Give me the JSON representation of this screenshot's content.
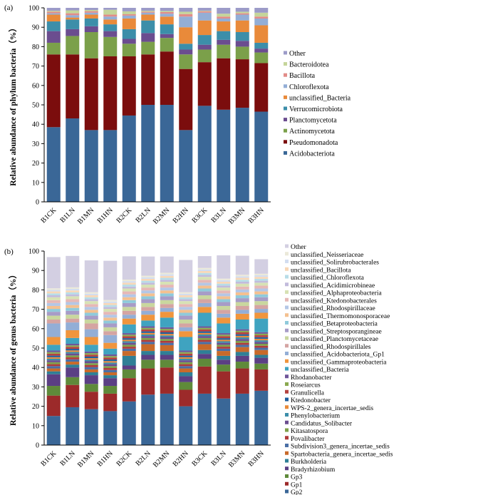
{
  "chart_data": [
    {
      "type": "bar",
      "stacked": true,
      "panel_label": "(a)",
      "ylabel": "Relative abundance of phylum bacteria（%）",
      "ylim": [
        0,
        100
      ],
      "yticks": [
        0,
        10,
        20,
        30,
        40,
        50,
        60,
        70,
        80,
        90,
        100
      ],
      "categories": [
        "B1CK",
        "B1LN",
        "B1MN",
        "B1HN",
        "B2CK",
        "B2LN",
        "B2MN",
        "B2HN",
        "B3CK",
        "B3LN",
        "B3MN",
        "B3HN"
      ],
      "legend_position": "right",
      "series": [
        {
          "name": "Acidobacteriota",
          "color": "#3a6797",
          "values": [
            38.5,
            43,
            37,
            37,
            44.5,
            50,
            50,
            37,
            49.5,
            47.5,
            48.5,
            46.5
          ]
        },
        {
          "name": "Pseudomonadota",
          "color": "#7b0d0d",
          "values": [
            37.5,
            33,
            37,
            38,
            30.5,
            26,
            27.5,
            31.5,
            22.5,
            26.5,
            25,
            25
          ]
        },
        {
          "name": "Actinomycetota",
          "color": "#7ba04a",
          "values": [
            6,
            9.5,
            13.5,
            10,
            6.5,
            6.5,
            7,
            7.5,
            6.5,
            7,
            6.5,
            5.5
          ]
        },
        {
          "name": "Planctomycetota",
          "color": "#6b4d8f",
          "values": [
            6,
            3.5,
            3,
            3,
            2.5,
            4.5,
            2,
            2.5,
            2.5,
            2.5,
            3,
            2
          ]
        },
        {
          "name": "Verrucomicrobiota",
          "color": "#3c8ea9",
          "values": [
            5,
            5,
            4,
            3.5,
            5,
            6.5,
            5,
            3,
            5,
            4.5,
            4.5,
            3
          ]
        },
        {
          "name": "unclassified_Bacteria",
          "color": "#e98a3a",
          "values": [
            3.5,
            1,
            2,
            2.5,
            5.5,
            3,
            4,
            8.5,
            7.5,
            5,
            6,
            9
          ]
        },
        {
          "name": "Chloroflexota",
          "color": "#93aed6",
          "values": [
            0.7,
            1.2,
            1,
            1.5,
            1.5,
            1,
            1.5,
            5.5,
            4,
            1.5,
            3,
            3.5
          ]
        },
        {
          "name": "Bacillota",
          "color": "#e28c88",
          "values": [
            0.8,
            1,
            0.8,
            1,
            0.7,
            0.5,
            0.8,
            1.3,
            0.7,
            1,
            0.7,
            1
          ]
        },
        {
          "name": "Bacteroidotea",
          "color": "#c5d59a",
          "values": [
            0.5,
            1.5,
            0.6,
            2.5,
            1.5,
            0.5,
            0.6,
            1.2,
            0.3,
            1.5,
            0.8,
            2
          ]
        },
        {
          "name": "Other",
          "color": "#9c9bc8",
          "values": [
            1.5,
            1.3,
            1.1,
            1,
            1.8,
            1.5,
            1.6,
            2,
            1.5,
            3,
            2,
            2.5
          ]
        }
      ]
    },
    {
      "type": "bar",
      "stacked": true,
      "panel_label": "(b)",
      "ylabel": "Relative abundance of genus bacteria（%）",
      "ylim": [
        0,
        100
      ],
      "yticks": [
        0,
        10,
        20,
        30,
        40,
        50,
        60,
        70,
        80,
        90,
        100
      ],
      "categories": [
        "B1CK",
        "B1LN",
        "B1MN",
        "B1HN",
        "B2CK",
        "B2LN",
        "B2MN",
        "B2HN",
        "B3CK",
        "B3LN",
        "B3MN",
        "B3HN"
      ],
      "legend_position": "right",
      "series": [
        {
          "name": "Gp2",
          "color": "#3a6797",
          "values": [
            15,
            19.5,
            18.5,
            17.5,
            22.5,
            26,
            26.5,
            20,
            26.5,
            24,
            26.5,
            28
          ]
        },
        {
          "name": "Gp1",
          "color": "#9c2a2a",
          "values": [
            10.5,
            11.5,
            9,
            9,
            12,
            13.5,
            13.5,
            8.5,
            14,
            14,
            13,
            11
          ]
        },
        {
          "name": "Gp3",
          "color": "#5f8a3a",
          "values": [
            5,
            4,
            4,
            4,
            4.5,
            4.5,
            4,
            4,
            4,
            3.5,
            3.5,
            3
          ]
        },
        {
          "name": "Bradyrhizobium",
          "color": "#5b3f84",
          "values": [
            6,
            5,
            4.5,
            4,
            2,
            2.5,
            2.5,
            3,
            2.5,
            2.5,
            3,
            3
          ]
        },
        {
          "name": "Burkholderia",
          "color": "#2f7f96",
          "values": [
            1.5,
            1.5,
            1.5,
            1.5,
            5,
            2,
            2,
            2,
            2,
            2,
            2,
            1.5
          ]
        },
        {
          "name": "Spartobacteria_genera_incertae_sedis",
          "color": "#c86a2a",
          "values": [
            1.5,
            1.5,
            1.5,
            1.5,
            2.5,
            3.5,
            3,
            2,
            3,
            2.5,
            2.5,
            2.5
          ]
        },
        {
          "name": "Subdivision3_genera_incertae_sedis",
          "color": "#4a6fa5",
          "values": [
            1.2,
            1.2,
            1.2,
            1.2,
            1.2,
            1.2,
            1.2,
            1.2,
            1.2,
            1.2,
            1.2,
            1.2
          ]
        },
        {
          "name": "Povalibacter",
          "color": "#b03a3a",
          "values": [
            1,
            1,
            1,
            1,
            1,
            1,
            1,
            1,
            1,
            1,
            1,
            1
          ]
        },
        {
          "name": "Kitasatospora",
          "color": "#7fa04a",
          "values": [
            1,
            1,
            1,
            1,
            1,
            1,
            1,
            1,
            1,
            1,
            1,
            1
          ]
        },
        {
          "name": "Candidatus_Solibacter",
          "color": "#6b4d8f",
          "values": [
            1,
            1,
            1,
            1,
            1,
            1,
            1,
            1,
            1,
            1,
            1,
            1
          ]
        },
        {
          "name": "Phenylobacterium",
          "color": "#3c8ea9",
          "values": [
            0.8,
            0.8,
            0.8,
            0.8,
            0.8,
            0.8,
            0.8,
            0.8,
            0.8,
            0.8,
            0.8,
            0.8
          ]
        },
        {
          "name": "WPS-2_genera_incertae_sedis",
          "color": "#e98a3a",
          "values": [
            0.8,
            0.8,
            0.8,
            0.8,
            0.8,
            0.8,
            0.8,
            0.8,
            0.8,
            0.8,
            0.8,
            0.8
          ]
        },
        {
          "name": "Ktedonobacter",
          "color": "#1d5e9e",
          "values": [
            0.8,
            0.8,
            0.8,
            0.8,
            0.8,
            0.8,
            0.8,
            0.8,
            0.8,
            0.8,
            0.8,
            0.8
          ]
        },
        {
          "name": "Granulicella",
          "color": "#b5423f",
          "values": [
            1,
            1,
            1,
            1,
            1,
            1,
            1,
            1,
            1,
            1,
            1,
            1
          ]
        },
        {
          "name": "Roseiarcus",
          "color": "#8aa94f",
          "values": [
            0.8,
            0.8,
            0.8,
            0.8,
            0.8,
            0.8,
            0.8,
            0.8,
            0.8,
            0.8,
            0.8,
            0.8
          ]
        },
        {
          "name": "Rhodanobacter",
          "color": "#6e5599",
          "values": [
            0.8,
            0.8,
            0.8,
            0.8,
            0.8,
            0.8,
            0.8,
            0.8,
            0.8,
            0.8,
            0.8,
            0.8
          ]
        },
        {
          "name": "unclassified_Bacteria",
          "color": "#3fa3c0",
          "values": [
            3,
            3,
            3.5,
            3,
            4.5,
            3,
            5,
            7,
            7,
            5,
            5,
            7
          ]
        },
        {
          "name": "unclassified_Gammaproteobacteria",
          "color": "#f0953d",
          "values": [
            4,
            4,
            4,
            3,
            3,
            3,
            3,
            3,
            3,
            3,
            3,
            3
          ]
        },
        {
          "name": "unclassified_Acidobacteriota_Gp1",
          "color": "#93aed6",
          "values": [
            7,
            4,
            4,
            4,
            2,
            2,
            2,
            2,
            2,
            2,
            2,
            2
          ]
        },
        {
          "name": "unclassified_Rhodospirillales",
          "color": "#d5a4a2",
          "values": [
            2,
            2,
            3,
            2,
            2,
            2,
            2,
            2,
            2,
            2,
            2,
            2
          ]
        },
        {
          "name": "unclassified_Planctomycetaceae",
          "color": "#c9d79e",
          "values": [
            2,
            2,
            2,
            2,
            2,
            2,
            2,
            2,
            2,
            2,
            2,
            2
          ]
        },
        {
          "name": "unclassified_Streptosporangineae",
          "color": "#a79cc7",
          "values": [
            2,
            2,
            2,
            2,
            2,
            2,
            2,
            2,
            2,
            2,
            2,
            2
          ]
        },
        {
          "name": "unclassified_Betaproteobacteria",
          "color": "#8fcadb",
          "values": [
            1.5,
            1.5,
            1.5,
            1.5,
            1.5,
            1.5,
            1.5,
            1.5,
            1.5,
            1.5,
            1.5,
            1.5
          ]
        },
        {
          "name": "unclassified_Thermomonosporaceae",
          "color": "#f4c08f",
          "values": [
            1.5,
            1.5,
            1.5,
            1.5,
            1.5,
            1.5,
            1.5,
            1.5,
            1.5,
            1.5,
            1.5,
            1.5
          ]
        },
        {
          "name": "unclassified_Rhodospirillaceae",
          "color": "#b4c7e6",
          "values": [
            1.5,
            1.5,
            1.5,
            1.5,
            1.5,
            1.5,
            1.5,
            1.5,
            1.5,
            1.5,
            1.5,
            1.5
          ]
        },
        {
          "name": "unclassified_Ktedonobacterales",
          "color": "#e6b8b6",
          "values": [
            1.5,
            1.5,
            1.5,
            1.5,
            1.5,
            1.5,
            1.5,
            1.5,
            1.5,
            1.5,
            1.5,
            1.5
          ]
        },
        {
          "name": "unclassified_Alphaproteobacteria",
          "color": "#d7e2b4",
          "values": [
            1.5,
            1.5,
            1.5,
            1.5,
            1.5,
            1.5,
            1.5,
            1.5,
            1.5,
            1.5,
            1.5,
            1.5
          ]
        },
        {
          "name": "unclassified_Acidimicrobineae",
          "color": "#c2bbdc",
          "values": [
            1,
            1,
            1,
            1,
            1,
            1,
            1,
            1,
            1,
            1,
            1,
            1
          ]
        },
        {
          "name": "unclassified_Chloroflexota",
          "color": "#b7dde8",
          "values": [
            1,
            1,
            1,
            1,
            1,
            1,
            1,
            1,
            1,
            1,
            1,
            1
          ]
        },
        {
          "name": "unclassified_Bacillota",
          "color": "#f8d7b6",
          "values": [
            1,
            1,
            1,
            1,
            1,
            1,
            1,
            1,
            1,
            1,
            1,
            1
          ]
        },
        {
          "name": "unclassified_Solirubrobacterales",
          "color": "#d2ddf0",
          "values": [
            0.8,
            0.8,
            0.8,
            0.8,
            0.8,
            0.8,
            0.8,
            0.8,
            0.8,
            0.8,
            0.8,
            0.8
          ]
        },
        {
          "name": "unclassified_Neisseriaceae",
          "color": "#ebe9d9",
          "values": [
            0.8,
            0.8,
            0.8,
            0.8,
            0.8,
            0.8,
            0.8,
            0.8,
            0.8,
            0.8,
            0.8,
            0.8
          ]
        },
        {
          "name": "Other",
          "color": "#d3cfe2",
          "values": [
            16.1,
            16.2,
            16.4,
            20.2,
            12,
            9.9,
            8.4,
            16.6,
            6.1,
            12,
            9.8,
            7.5
          ]
        }
      ]
    }
  ]
}
